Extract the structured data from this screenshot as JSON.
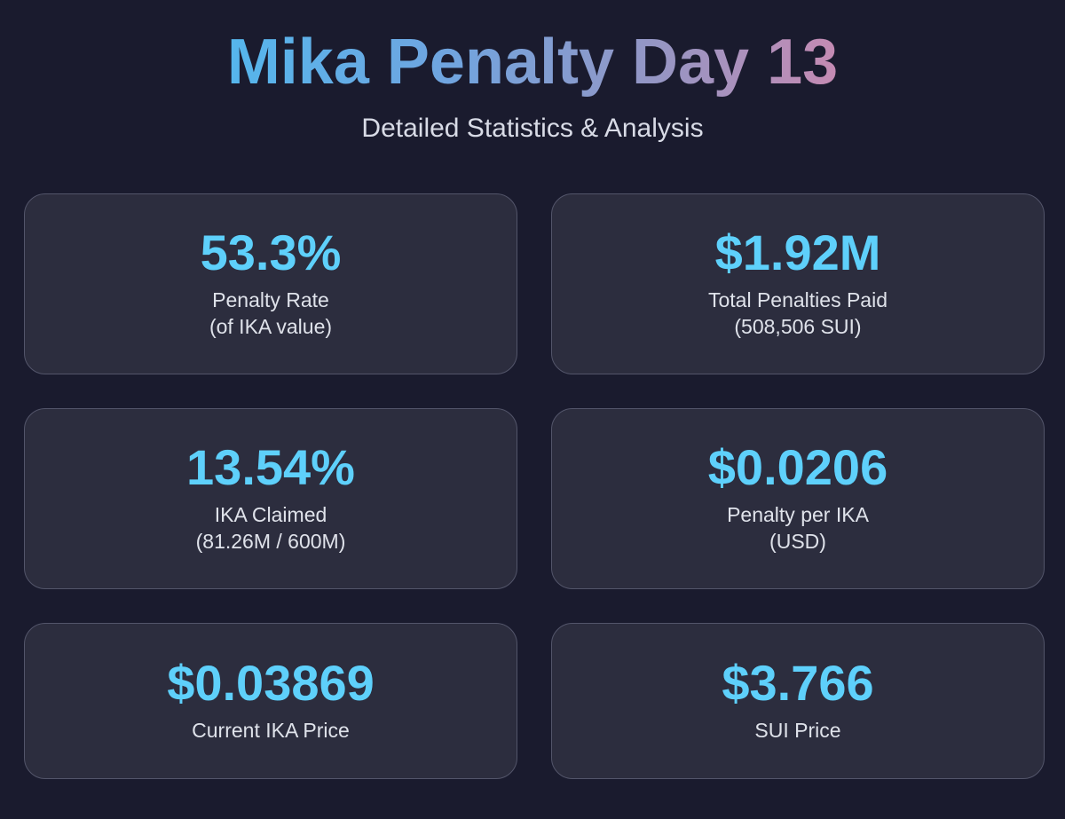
{
  "header": {
    "title": "Mika Penalty Day 13",
    "subtitle": "Detailed Statistics & Analysis"
  },
  "cards": [
    {
      "value": "53.3%",
      "label": "Penalty Rate",
      "sub": "(of IKA value)"
    },
    {
      "value": "$1.92M",
      "label": "Total Penalties Paid",
      "sub": "(508,506 SUI)"
    },
    {
      "value": "13.54%",
      "label": "IKA Claimed",
      "sub": "(81.26M / 600M)"
    },
    {
      "value": "$0.0206",
      "label": "Penalty per IKA",
      "sub": "(USD)"
    },
    {
      "value": "$0.03869",
      "label": "Current IKA Price"
    },
    {
      "value": "$3.766",
      "label": "SUI Price"
    }
  ],
  "colors": {
    "background": "#1a1b2e",
    "card_background": "#2c2d3e",
    "card_border": "#53556a",
    "value": "#5ed0fb",
    "title_gradient": [
      "#55b6ec",
      "#9596c4",
      "#c58bb3"
    ]
  }
}
